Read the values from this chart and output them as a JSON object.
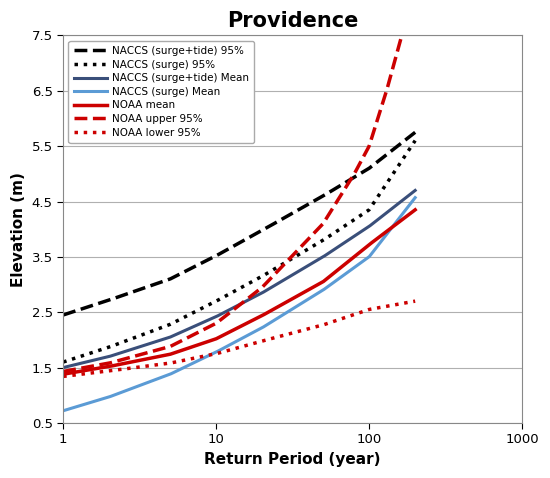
{
  "title": "Providence",
  "xlabel": "Return Period (year)",
  "ylabel": "Elevation (m)",
  "xlim": [
    1,
    1000
  ],
  "ylim": [
    0.5,
    7.5
  ],
  "yticks": [
    0.5,
    1.5,
    2.5,
    3.5,
    4.5,
    5.5,
    6.5,
    7.5
  ],
  "xticks": [
    1,
    10,
    100,
    1000
  ],
  "curves": {
    "naccs_surge_tide_95": {
      "label": "NACCS (surge+tide) 95%",
      "color": "#000000",
      "linestyle": "dashed",
      "linewidth": 2.5,
      "x": [
        1,
        2,
        5,
        10,
        20,
        50,
        100,
        200
      ],
      "y": [
        2.45,
        2.72,
        3.1,
        3.52,
        3.98,
        4.6,
        5.1,
        5.75
      ]
    },
    "naccs_surge_95": {
      "label": "NACCS (surge) 95%",
      "color": "#000000",
      "linestyle": "dotted",
      "linewidth": 2.5,
      "x": [
        1,
        2,
        5,
        10,
        20,
        50,
        100,
        200
      ],
      "y": [
        1.6,
        1.87,
        2.28,
        2.7,
        3.15,
        3.8,
        4.35,
        5.6
      ]
    },
    "naccs_surge_tide_mean": {
      "label": "NACCS (surge+tide) Mean",
      "color": "#3a4f7a",
      "linestyle": "solid",
      "linewidth": 2.2,
      "x": [
        1,
        2,
        5,
        10,
        20,
        50,
        100,
        200
      ],
      "y": [
        1.5,
        1.7,
        2.05,
        2.42,
        2.85,
        3.5,
        4.05,
        4.7
      ]
    },
    "naccs_surge_mean": {
      "label": "NACCS (surge) Mean",
      "color": "#5b9bd5",
      "linestyle": "solid",
      "linewidth": 2.2,
      "x": [
        1,
        2,
        5,
        10,
        20,
        50,
        100,
        200
      ],
      "y": [
        0.72,
        0.97,
        1.38,
        1.78,
        2.22,
        2.9,
        3.5,
        4.57
      ]
    },
    "noaa_mean": {
      "label": "NOAA mean",
      "color": "#cc0000",
      "linestyle": "solid",
      "linewidth": 2.5,
      "x": [
        1,
        2,
        5,
        10,
        20,
        50,
        100,
        200
      ],
      "y": [
        1.38,
        1.52,
        1.74,
        2.02,
        2.44,
        3.05,
        3.72,
        4.35
      ]
    },
    "noaa_upper_95": {
      "label": "NOAA upper 95%",
      "color": "#cc0000",
      "linestyle": "dashed",
      "linewidth": 2.5,
      "x": [
        1,
        2,
        5,
        10,
        20,
        50,
        80,
        100,
        130,
        160,
        200
      ],
      "y": [
        1.43,
        1.58,
        1.88,
        2.3,
        2.95,
        4.1,
        5.0,
        5.5,
        6.5,
        7.4,
        8.5
      ]
    },
    "noaa_lower_95": {
      "label": "NOAA lower 95%",
      "color": "#cc0000",
      "linestyle": "dotted",
      "linewidth": 2.5,
      "x": [
        1,
        2,
        5,
        10,
        20,
        50,
        100,
        200
      ],
      "y": [
        1.34,
        1.44,
        1.58,
        1.75,
        1.98,
        2.27,
        2.55,
        2.7
      ]
    }
  },
  "legend_order": [
    "naccs_surge_tide_95",
    "naccs_surge_95",
    "naccs_surge_tide_mean",
    "naccs_surge_mean",
    "noaa_mean",
    "noaa_upper_95",
    "noaa_lower_95"
  ],
  "background_color": "#ffffff",
  "grid_color": "#b0b0b0"
}
